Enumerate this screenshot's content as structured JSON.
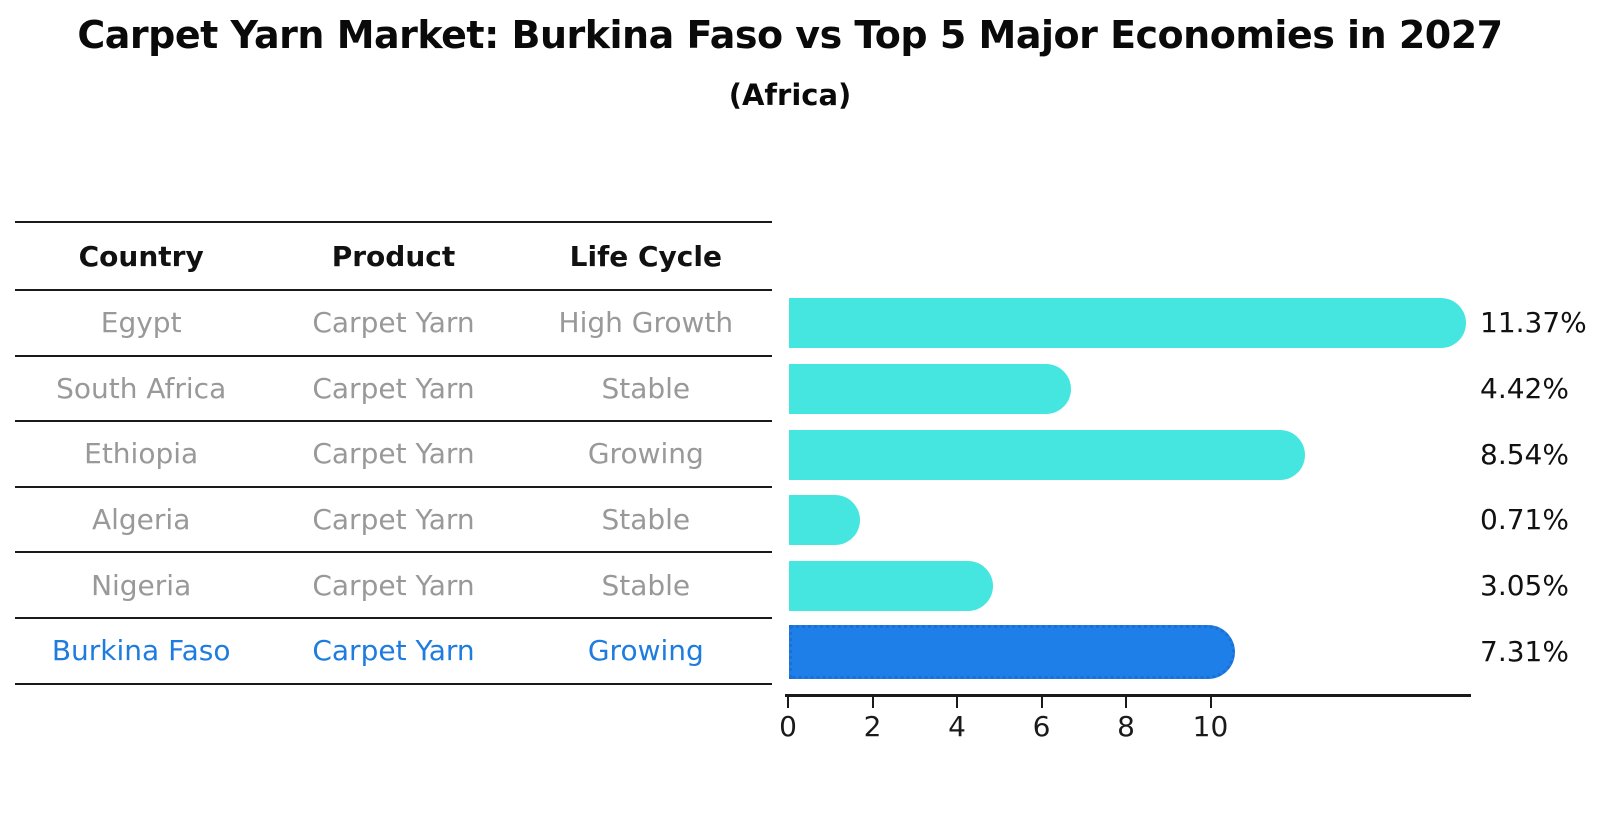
{
  "title": "Carpet Yarn Market: Burkina Faso vs Top 5 Major Economies in 2027",
  "subtitle": "(Africa)",
  "colors": {
    "bar": "#45E6E0",
    "bar_highlight": "#1F7FE8",
    "bar_highlight_border": "#1B6FD6",
    "table_text_muted": "#999999",
    "table_text_highlight": "#1E7CE0",
    "text_dark": "#111111",
    "line": "#1A1A1A"
  },
  "table": {
    "headers": [
      "Country",
      "Product",
      "Life Cycle"
    ],
    "rows": [
      {
        "country": "Egypt",
        "product": "Carpet Yarn",
        "life_cycle": "High Growth",
        "highlight": false
      },
      {
        "country": "South Africa",
        "product": "Carpet Yarn",
        "life_cycle": "Stable",
        "highlight": false
      },
      {
        "country": "Ethiopia",
        "product": "Carpet Yarn",
        "life_cycle": "Growing",
        "highlight": false
      },
      {
        "country": "Algeria",
        "product": "Carpet Yarn",
        "life_cycle": "Stable",
        "highlight": false
      },
      {
        "country": "Nigeria",
        "product": "Carpet Yarn",
        "life_cycle": "Stable",
        "highlight": false
      },
      {
        "country": "Burkina Faso",
        "product": "Carpet Yarn",
        "life_cycle": "Growing",
        "highlight": true
      }
    ]
  },
  "chart_data": {
    "type": "bar",
    "orientation": "horizontal",
    "title": "Carpet Yarn Market: Burkina Faso vs Top 5 Major Economies in 2027",
    "subtitle": "(Africa)",
    "categories": [
      "Egypt",
      "South Africa",
      "Ethiopia",
      "Algeria",
      "Nigeria",
      "Burkina Faso"
    ],
    "values": [
      11.37,
      4.42,
      8.54,
      0.71,
      3.05,
      7.31
    ],
    "value_labels": [
      "11.37%",
      "4.42%",
      "8.54%",
      "0.71%",
      "3.05%",
      "7.31%"
    ],
    "unit": "percent",
    "highlight_category": "Burkina Faso",
    "x_ticks": [
      0,
      2,
      4,
      6,
      8,
      10
    ],
    "xlim": [
      0,
      16
    ],
    "grid": false,
    "legend": false
  }
}
